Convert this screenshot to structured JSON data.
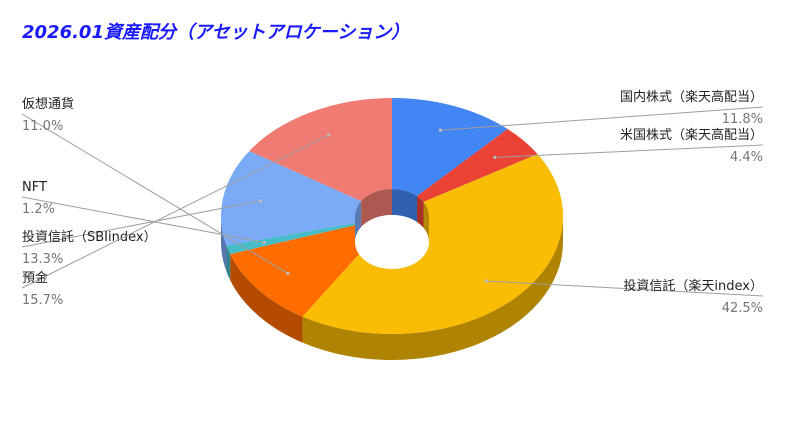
{
  "chart_data": {
    "type": "pie",
    "style": "3d-donut",
    "title": "2026.01資産配分（アセットアロケーション）",
    "colors": {
      "title": "#1a1aff"
    },
    "slices": [
      {
        "label": "国内株式（楽天高配当）",
        "value": 11.8,
        "value_label": "11.8%",
        "color": "#4285f4",
        "side": "right"
      },
      {
        "label": "米国株式（楽天高配当）",
        "value": 4.4,
        "value_label": "4.4%",
        "color": "#ea4335",
        "side": "right"
      },
      {
        "label": "投資信託（楽天index）",
        "value": 42.5,
        "value_label": "42.5%",
        "color": "#fbbc04",
        "side": "right"
      },
      {
        "label": "仮想通貨",
        "value": 11.0,
        "value_label": "11.0%",
        "color": "#ff6d01",
        "side": "left"
      },
      {
        "label": "NFT",
        "value": 1.2,
        "value_label": "1.2%",
        "color": "#46bdc6",
        "side": "left"
      },
      {
        "label": "投資信託（SBIindex）",
        "value": 13.3,
        "value_label": "13.3%",
        "color": "#7baaf7",
        "side": "left"
      },
      {
        "label": "預金",
        "value": 15.7,
        "value_label": "15.7%",
        "color": "#f07b72",
        "side": "left"
      }
    ]
  }
}
